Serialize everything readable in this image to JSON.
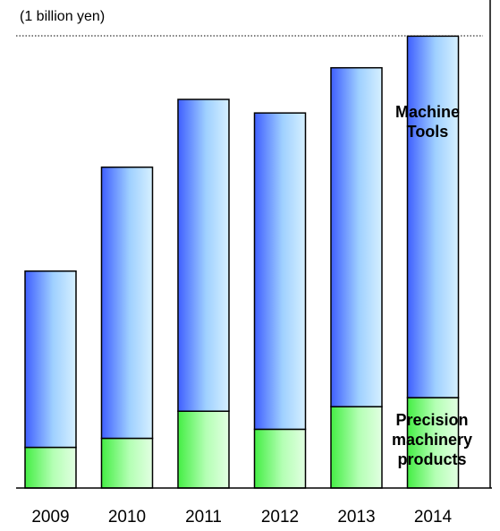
{
  "chart_data": {
    "type": "bar",
    "stacked": true,
    "unit_label": "(1 billion yen)",
    "categories": [
      "2009",
      "2010",
      "2011",
      "2012",
      "2013",
      "2014"
    ],
    "series": [
      {
        "name": "Precision machinery products",
        "values": [
          9,
          11,
          17,
          13,
          18,
          20
        ],
        "color": "#66ff66"
      },
      {
        "name": "Machine Tools",
        "values": [
          39,
          60,
          69,
          70,
          75,
          80
        ],
        "color": "#5a78ff"
      }
    ],
    "ylim": [
      0,
      108
    ],
    "reference_line": "dotted",
    "legend": "inline-right",
    "grid": false
  }
}
